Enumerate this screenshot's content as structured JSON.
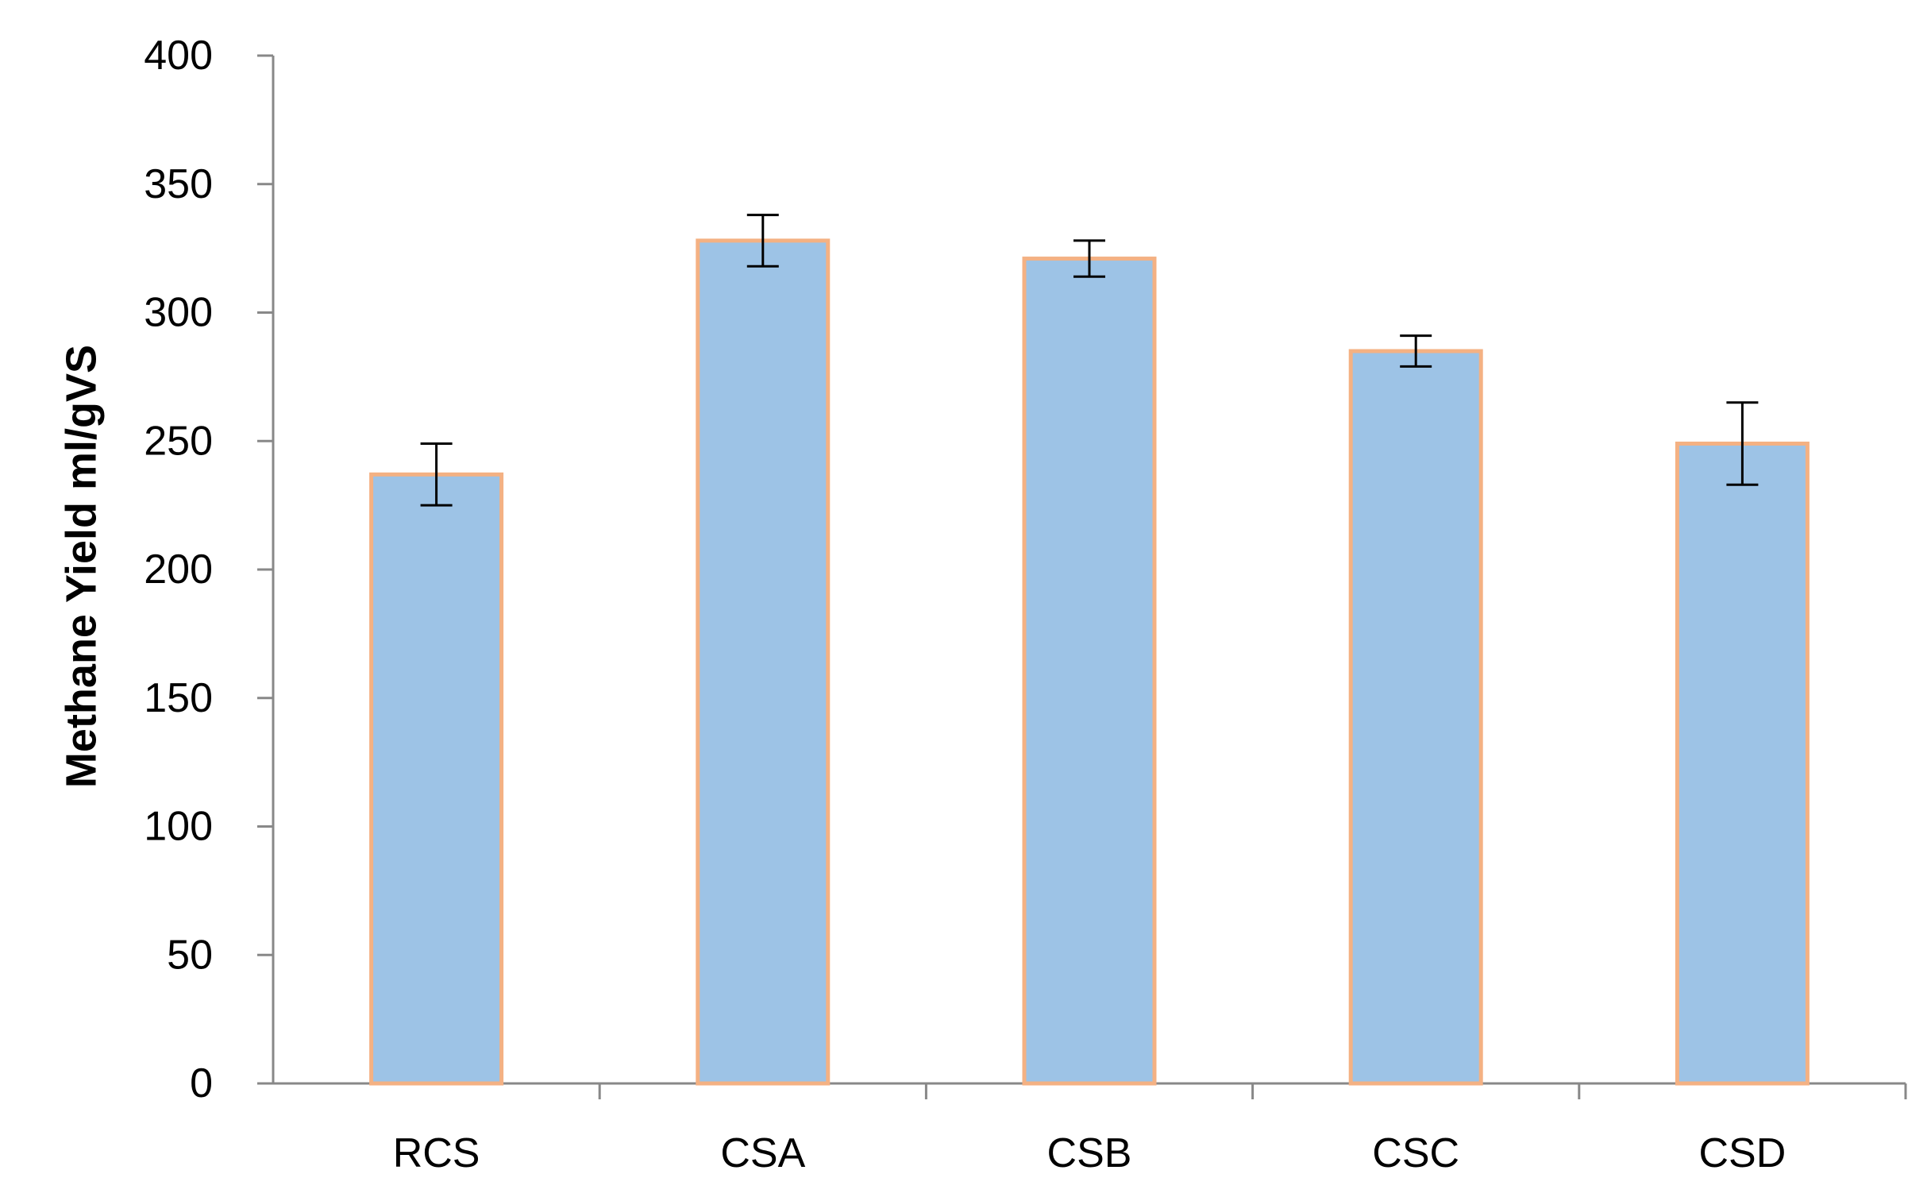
{
  "chart_data": {
    "type": "bar",
    "title": "",
    "xlabel": "",
    "ylabel": "Methane Yield  ml/gVS",
    "categories": [
      "RCS",
      "CSA",
      "CSB",
      "CSC",
      "CSD"
    ],
    "values": [
      237,
      328,
      321,
      285,
      249
    ],
    "error": [
      12,
      10,
      7,
      6,
      16
    ],
    "ylim": [
      0,
      400
    ],
    "yticks": [
      0,
      50,
      100,
      150,
      200,
      250,
      300,
      350,
      400
    ],
    "ytick_labels": [
      "0",
      "50",
      "100",
      "150",
      "200",
      "250",
      "300",
      "350",
      "400"
    ],
    "grid": false,
    "legend": "none",
    "colors": {
      "bar_fill": "#9dc3e6",
      "bar_border": "#f4b183",
      "axis": "#888888",
      "error_bar": "#000000",
      "text": "#000000"
    }
  }
}
